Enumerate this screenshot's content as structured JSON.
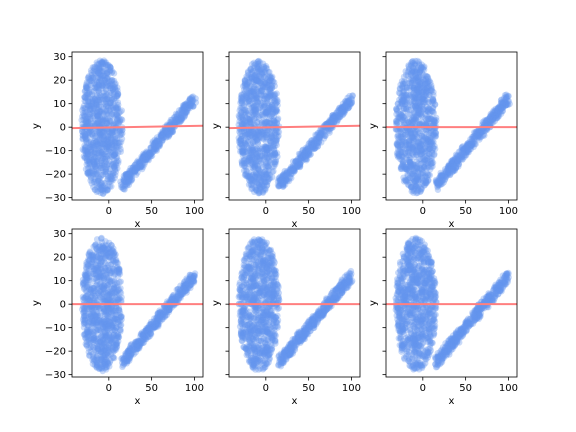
{
  "chart_data": {
    "type": "scatter",
    "layout": {
      "rows": 2,
      "cols": 3,
      "sharey": true
    },
    "colors": {
      "points": "#6495ED",
      "points_opacity": 0.35,
      "fit_line": "#FF7F7F",
      "spine": "#000000",
      "background": "#ffffff"
    },
    "panels": [
      {
        "xlabel": "x",
        "ylabel": "y",
        "xlim": [
          -43,
          110
        ],
        "ylim": [
          -31,
          32
        ],
        "xticks": [
          0,
          50,
          100
        ],
        "yticks": [
          -30,
          -20,
          -10,
          0,
          10,
          20,
          30
        ],
        "scatter": {
          "ellipse": {
            "center": [
              -8,
              0
            ],
            "radius": [
              24,
              28.5
            ]
          },
          "band": {
            "start": [
              15,
              -25
            ],
            "end": [
              100,
              12
            ],
            "halfwidth": 2.4
          },
          "fit_line": {
            "x": [
              -43,
              110
            ],
            "y": [
              -0.4,
              0.6
            ]
          }
        }
      },
      {
        "xlabel": "x",
        "ylabel": "y",
        "xlim": [
          -43,
          110
        ],
        "ylim": [
          -31,
          32
        ],
        "xticks": [
          0,
          50,
          100
        ],
        "yticks": [
          -30,
          -20,
          -10,
          0,
          10,
          20,
          30
        ],
        "scatter": {
          "ellipse": {
            "center": [
              -8,
              0
            ],
            "radius": [
              24,
              28.5
            ]
          },
          "band": {
            "start": [
              15,
              -25
            ],
            "end": [
              100,
              12
            ],
            "halfwidth": 2.4
          },
          "fit_line": {
            "x": [
              -43,
              110
            ],
            "y": [
              -0.4,
              0.6
            ]
          }
        }
      },
      {
        "xlabel": "x",
        "ylabel": "y",
        "xlim": [
          -43,
          110
        ],
        "ylim": [
          -31,
          32
        ],
        "xticks": [
          0,
          50,
          100
        ],
        "yticks": [
          -30,
          -20,
          -10,
          0,
          10,
          20,
          30
        ],
        "scatter": {
          "ellipse": {
            "center": [
              -8,
              0
            ],
            "radius": [
              24,
              28.5
            ]
          },
          "band": {
            "start": [
              15,
              -25
            ],
            "end": [
              100,
              12
            ],
            "halfwidth": 2.4
          },
          "fit_line": {
            "x": [
              -43,
              110
            ],
            "y": [
              0.0,
              0.0
            ]
          }
        }
      },
      {
        "xlabel": "x",
        "ylabel": "y",
        "xlim": [
          -43,
          110
        ],
        "ylim": [
          -31,
          32
        ],
        "xticks": [
          0,
          50,
          100
        ],
        "yticks": [
          -30,
          -20,
          -10,
          0,
          10,
          20,
          30
        ],
        "scatter": {
          "ellipse": {
            "center": [
              -8,
              0
            ],
            "radius": [
              24,
              28.5
            ]
          },
          "band": {
            "start": [
              15,
              -25
            ],
            "end": [
              100,
              12
            ],
            "halfwidth": 2.4
          },
          "fit_line": {
            "x": [
              -43,
              110
            ],
            "y": [
              0.0,
              0.0
            ]
          }
        }
      },
      {
        "xlabel": "x",
        "ylabel": "y",
        "xlim": [
          -43,
          110
        ],
        "ylim": [
          -31,
          32
        ],
        "xticks": [
          0,
          50,
          100
        ],
        "yticks": [
          -30,
          -20,
          -10,
          0,
          10,
          20,
          30
        ],
        "scatter": {
          "ellipse": {
            "center": [
              -8,
              0
            ],
            "radius": [
              24,
              28.5
            ]
          },
          "band": {
            "start": [
              15,
              -25
            ],
            "end": [
              100,
              12
            ],
            "halfwidth": 2.4
          },
          "fit_line": {
            "x": [
              -43,
              110
            ],
            "y": [
              0.0,
              0.0
            ]
          }
        }
      },
      {
        "xlabel": "x",
        "ylabel": "y",
        "xlim": [
          -43,
          110
        ],
        "ylim": [
          -31,
          32
        ],
        "xticks": [
          0,
          50,
          100
        ],
        "yticks": [
          -30,
          -20,
          -10,
          0,
          10,
          20,
          30
        ],
        "scatter": {
          "ellipse": {
            "center": [
              -8,
              0
            ],
            "radius": [
              24,
              28.5
            ]
          },
          "band": {
            "start": [
              15,
              -25
            ],
            "end": [
              100,
              12
            ],
            "halfwidth": 2.4
          },
          "fit_line": {
            "x": [
              -43,
              110
            ],
            "y": [
              0.0,
              0.0
            ]
          }
        }
      }
    ]
  }
}
